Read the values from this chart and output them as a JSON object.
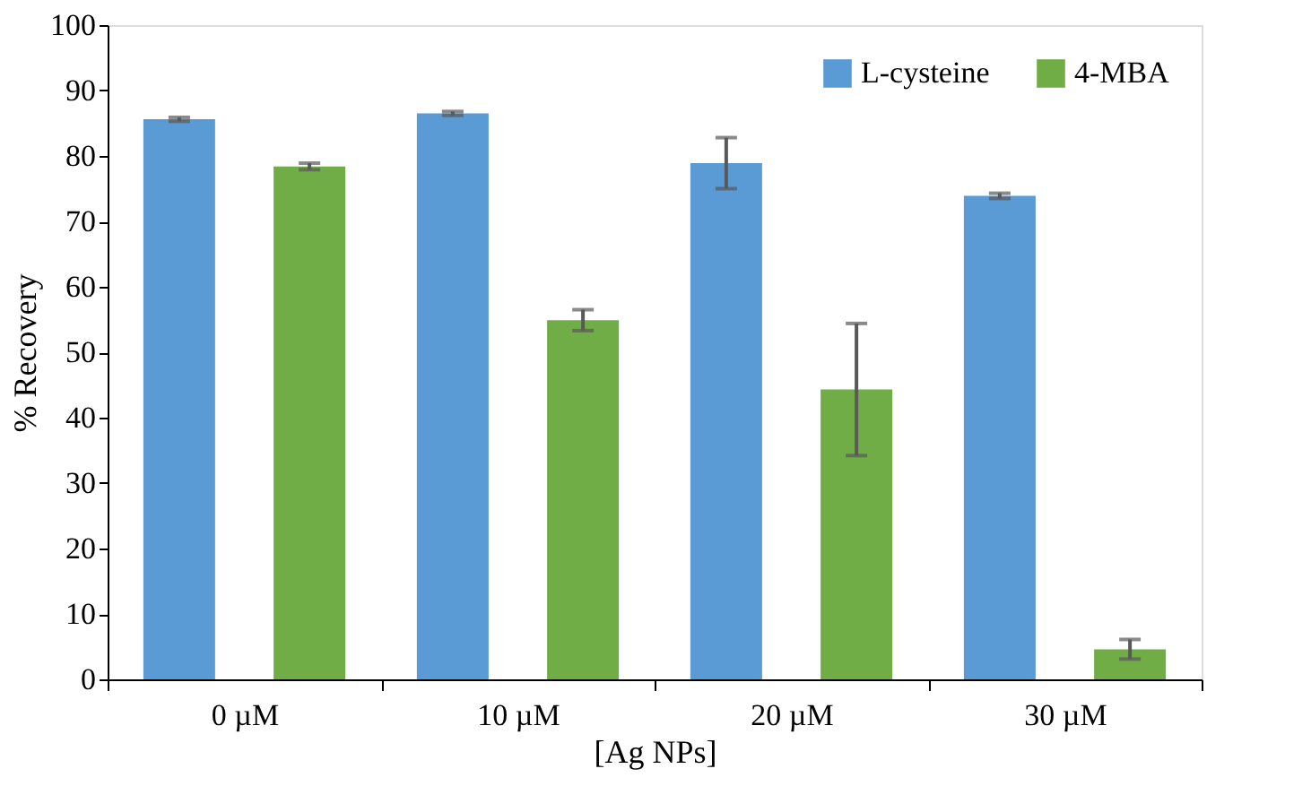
{
  "chart_data": {
    "type": "bar",
    "xlabel": "[Ag NPs]",
    "ylabel": "% Recovery",
    "categories": [
      "0 µM",
      "10 µM",
      "20 µM",
      "30 µM"
    ],
    "series": [
      {
        "name": "L-cysteine",
        "color": "#5b9bd5",
        "values": [
          85.6,
          86.5,
          78.9,
          73.9
        ],
        "errors": [
          0.3,
          0.3,
          3.9,
          0.4
        ]
      },
      {
        "name": "4-MBA",
        "color": "#70ad47",
        "values": [
          78.4,
          54.9,
          44.3,
          4.6
        ],
        "errors": [
          0.5,
          1.6,
          10.1,
          1.5
        ]
      }
    ],
    "ylim": [
      0,
      100
    ],
    "yticks": [
      0,
      10,
      20,
      30,
      40,
      50,
      60,
      70,
      80,
      90,
      100
    ],
    "grid": false,
    "legend": "top right"
  }
}
